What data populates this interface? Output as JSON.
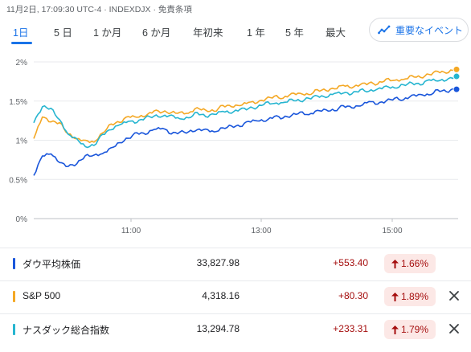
{
  "header": {
    "meta": "11月2日, 17:09:30 UTC-4 · INDEXDJX · 免責条項"
  },
  "tabs": [
    {
      "label": "1日",
      "active": true
    },
    {
      "label": "5 日",
      "active": false
    },
    {
      "label": "1 か月",
      "active": false
    },
    {
      "label": "6 か月",
      "active": false
    },
    {
      "label": "年初来",
      "active": false
    },
    {
      "label": "1 年",
      "active": false
    },
    {
      "label": "5 年",
      "active": false
    },
    {
      "label": "最大",
      "active": false
    }
  ],
  "events_button": {
    "label": "重要なイベント",
    "icon": "trending-icon"
  },
  "chart_data": {
    "type": "line",
    "y_ticks": [
      "0%",
      "0.5%",
      "1%",
      "1.5%",
      "2%"
    ],
    "x_ticks": [
      "11:00",
      "13:00",
      "15:00"
    ],
    "ylim": [
      0,
      2
    ],
    "series": [
      {
        "name": "ダウ平均株価",
        "color": "#1a56db",
        "values": [
          0.55,
          0.78,
          0.85,
          0.7,
          0.66,
          0.72,
          0.78,
          0.82,
          0.84,
          0.88,
          0.99,
          1.02,
          1.08,
          1.1,
          1.12,
          1.15,
          1.1,
          1.08,
          1.12,
          1.14,
          1.12,
          1.13,
          1.15,
          1.17,
          1.2,
          1.22,
          1.25,
          1.26,
          1.28,
          1.3,
          1.32,
          1.34,
          1.35,
          1.37,
          1.38,
          1.4,
          1.42,
          1.42,
          1.45,
          1.47,
          1.48,
          1.5,
          1.52,
          1.54,
          1.56,
          1.58,
          1.6,
          1.62,
          1.63,
          1.66
        ]
      },
      {
        "name": "S&P 500",
        "color": "#f4a825",
        "values": [
          1.0,
          1.3,
          1.25,
          1.2,
          1.1,
          1.02,
          0.98,
          1.0,
          1.08,
          1.2,
          1.25,
          1.28,
          1.3,
          1.32,
          1.35,
          1.38,
          1.35,
          1.34,
          1.37,
          1.4,
          1.38,
          1.39,
          1.42,
          1.44,
          1.45,
          1.46,
          1.5,
          1.52,
          1.55,
          1.56,
          1.58,
          1.6,
          1.6,
          1.62,
          1.65,
          1.66,
          1.68,
          1.69,
          1.7,
          1.72,
          1.74,
          1.76,
          1.77,
          1.79,
          1.8,
          1.82,
          1.84,
          1.86,
          1.88,
          1.89
        ]
      },
      {
        "name": "ナスダック総合指数",
        "color": "#26b5d0",
        "values": [
          1.2,
          1.45,
          1.4,
          1.25,
          1.1,
          1.0,
          0.92,
          0.95,
          1.05,
          1.15,
          1.2,
          1.22,
          1.25,
          1.28,
          1.3,
          1.33,
          1.3,
          1.28,
          1.3,
          1.33,
          1.32,
          1.33,
          1.35,
          1.37,
          1.38,
          1.4,
          1.44,
          1.46,
          1.48,
          1.49,
          1.5,
          1.52,
          1.53,
          1.55,
          1.57,
          1.58,
          1.6,
          1.61,
          1.62,
          1.64,
          1.66,
          1.67,
          1.69,
          1.7,
          1.72,
          1.73,
          1.75,
          1.76,
          1.78,
          1.79
        ]
      }
    ]
  },
  "indices": [
    {
      "name": "ダウ平均株価",
      "value": "33,827.98",
      "change": "+553.40",
      "pct": "1.66%",
      "color": "#1a56db",
      "removable": false
    },
    {
      "name": "S&P 500",
      "value": "4,318.16",
      "change": "+80.30",
      "pct": "1.89%",
      "color": "#f4a825",
      "removable": true
    },
    {
      "name": "ナスダック総合指数",
      "value": "13,294.78",
      "change": "+233.31",
      "pct": "1.79%",
      "color": "#26b5d0",
      "removable": true
    }
  ],
  "icons": {
    "up_arrow": "arrow-up-icon",
    "close": "close-icon"
  }
}
